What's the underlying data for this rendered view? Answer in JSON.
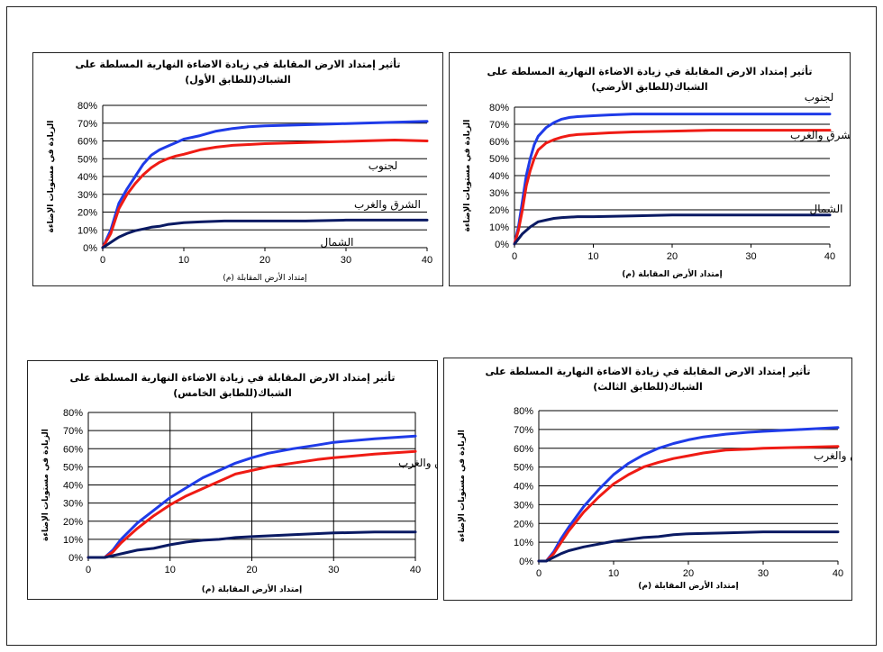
{
  "colors": {
    "south": "#1f3be8",
    "eastwest": "#ef1b14",
    "north": "#0a1a63",
    "grid": "#000000",
    "frame": "#222222"
  },
  "charts": [
    {
      "id": "first-floor",
      "title_line1": "تأثير إمتداد الارض المقابلة في زيادة الاضاءة النهارية المسلطة على",
      "title_line2": "الشباك(للطابق الأول)",
      "xlabel": "إمتداد الأرض المقابلة (م)",
      "ylabel": "الزيادة في مستويات الإضاءة",
      "series_labels": {
        "south": "لجنوب",
        "eastwest": "الشرق والغرب",
        "north": "الشمال"
      }
    },
    {
      "id": "ground-floor",
      "title_line1": "تأثير إمتداد الارض المقابلة في زيادة الاضاءة النهارية المسلطة على",
      "title_line2": "الشباك(للطابق الأرضي)",
      "xlabel": "إمتداد الأرض المقابلة (م)",
      "ylabel": "الزيادة في مستويات الإضاءة",
      "series_labels": {
        "south": "لجنوب",
        "eastwest": "الشرق والغرب",
        "north": "الشمال"
      }
    },
    {
      "id": "fifth-floor",
      "title_line1": "تأثير إمتداد الارض المقابلة في زيادة الاضاءة النهارية المسلطة على",
      "title_line2": "الشباك(للطابق الخامس)",
      "xlabel": "إمتداد الأرض المقابلة (م)",
      "ylabel": "الزيادة في مستويات الإضاءة",
      "series_labels": {
        "eastwest": "الشرق والغرب"
      }
    },
    {
      "id": "third-floor",
      "title_line1": "تأثير إمتداد الارض المقابلة في زيادة الاضاءة النهارية المسلطة على",
      "title_line2": "الشباك(للطابق الثالث)",
      "xlabel": "إمتداد الأرض المقابلة (م)",
      "ylabel": "الزيادة في مستويات الإضاءة",
      "series_labels": {
        "eastwest": "الشرق والغرب"
      }
    }
  ],
  "chart_data": [
    {
      "type": "line",
      "title": "تأثير إمتداد الارض المقابلة في زيادة الاضاءة النهارية المسلطة على الشباك(للطابق الأول)",
      "xlabel": "إمتداد الأرض المقابلة (م)",
      "ylabel": "الزيادة في مستويات الإضاءة",
      "xlim": [
        0,
        40
      ],
      "ylim": [
        0,
        0.8
      ],
      "xticks": [
        0,
        10,
        20,
        30,
        40
      ],
      "yticks": [
        "0%",
        "10%",
        "20%",
        "30%",
        "40%",
        "50%",
        "60%",
        "70%",
        "80%"
      ],
      "grid": "horizontal",
      "series": [
        {
          "key": "south",
          "name": "لجنوب",
          "color": "#1f3be8",
          "x": [
            0,
            1,
            2,
            3,
            4,
            5,
            6,
            7,
            8,
            9,
            10,
            12,
            14,
            16,
            18,
            20,
            24,
            28,
            32,
            36,
            40
          ],
          "y": [
            0,
            0.1,
            0.25,
            0.33,
            0.4,
            0.47,
            0.52,
            0.55,
            0.57,
            0.59,
            0.61,
            0.63,
            0.655,
            0.67,
            0.68,
            0.685,
            0.69,
            0.695,
            0.7,
            0.705,
            0.71
          ]
        },
        {
          "key": "eastwest",
          "name": "الشرق والغرب",
          "color": "#ef1b14",
          "x": [
            0,
            1,
            2,
            3,
            4,
            5,
            6,
            7,
            8,
            9,
            10,
            12,
            14,
            16,
            18,
            20,
            24,
            28,
            32,
            36,
            40
          ],
          "y": [
            0,
            0.08,
            0.22,
            0.3,
            0.36,
            0.41,
            0.45,
            0.48,
            0.5,
            0.515,
            0.525,
            0.55,
            0.565,
            0.575,
            0.58,
            0.585,
            0.59,
            0.595,
            0.6,
            0.605,
            0.6
          ]
        },
        {
          "key": "north",
          "name": "الشمال",
          "color": "#0a1a63",
          "x": [
            0,
            1,
            2,
            3,
            4,
            5,
            6,
            7,
            8,
            10,
            12,
            15,
            20,
            25,
            30,
            35,
            40
          ],
          "y": [
            0,
            0.03,
            0.06,
            0.08,
            0.095,
            0.105,
            0.115,
            0.12,
            0.13,
            0.14,
            0.145,
            0.15,
            0.15,
            0.15,
            0.155,
            0.155,
            0.155
          ]
        }
      ]
    },
    {
      "type": "line",
      "title": "تأثير إمتداد الارض المقابلة في زيادة الاضاءة النهارية المسلطة على الشباك(للطابق الأرضي)",
      "xlabel": "إمتداد الأرض المقابلة (م)",
      "ylabel": "الزيادة في مستويات الإضاءة",
      "xlim": [
        0,
        40
      ],
      "ylim": [
        0,
        0.8
      ],
      "xticks": [
        0,
        10,
        20,
        30,
        40
      ],
      "yticks": [
        "0%",
        "10%",
        "20%",
        "30%",
        "40%",
        "50%",
        "60%",
        "70%",
        "80%"
      ],
      "grid": "horizontal",
      "series": [
        {
          "key": "south",
          "name": "لجنوب",
          "color": "#1f3be8",
          "x": [
            0,
            0.5,
            1,
            1.5,
            2,
            2.5,
            3,
            4,
            5,
            6,
            7,
            8,
            10,
            12,
            15,
            20,
            25,
            30,
            35,
            40
          ],
          "y": [
            0,
            0.1,
            0.25,
            0.4,
            0.5,
            0.58,
            0.63,
            0.68,
            0.71,
            0.73,
            0.74,
            0.745,
            0.75,
            0.755,
            0.76,
            0.76,
            0.76,
            0.76,
            0.76,
            0.76
          ]
        },
        {
          "key": "eastwest",
          "name": "الشرق والغرب",
          "color": "#ef1b14",
          "x": [
            0,
            0.5,
            1,
            1.5,
            2,
            2.5,
            3,
            4,
            5,
            6,
            7,
            8,
            10,
            12,
            15,
            20,
            25,
            30,
            35,
            40
          ],
          "y": [
            0,
            0.08,
            0.2,
            0.34,
            0.43,
            0.5,
            0.55,
            0.59,
            0.61,
            0.625,
            0.635,
            0.64,
            0.645,
            0.65,
            0.655,
            0.66,
            0.665,
            0.665,
            0.665,
            0.665
          ]
        },
        {
          "key": "north",
          "name": "الشمال",
          "color": "#0a1a63",
          "x": [
            0,
            1,
            2,
            3,
            4,
            5,
            6,
            8,
            10,
            15,
            20,
            25,
            30,
            35,
            40
          ],
          "y": [
            0,
            0.06,
            0.1,
            0.13,
            0.14,
            0.15,
            0.155,
            0.16,
            0.16,
            0.165,
            0.17,
            0.17,
            0.17,
            0.17,
            0.17
          ]
        }
      ]
    },
    {
      "type": "line",
      "title": "تأثير إمتداد الارض المقابلة في زيادة الاضاءة النهارية المسلطة على الشباك(للطابق الخامس)",
      "xlabel": "إمتداد الأرض المقابلة (م)",
      "ylabel": "الزيادة في مستويات الإضاءة",
      "xlim": [
        0,
        40
      ],
      "ylim": [
        0,
        0.8
      ],
      "xticks": [
        0,
        10,
        20,
        30,
        40
      ],
      "yticks": [
        "0%",
        "10%",
        "20%",
        "30%",
        "40%",
        "50%",
        "60%",
        "70%",
        "80%"
      ],
      "grid": "both",
      "series": [
        {
          "key": "south",
          "color": "#1f3be8",
          "x": [
            0,
            2,
            3,
            4,
            6,
            8,
            10,
            12,
            14,
            16,
            18,
            20,
            22,
            25,
            28,
            30,
            35,
            40
          ],
          "y": [
            0,
            0,
            0.04,
            0.1,
            0.19,
            0.26,
            0.33,
            0.385,
            0.44,
            0.48,
            0.52,
            0.55,
            0.575,
            0.6,
            0.62,
            0.635,
            0.655,
            0.67
          ]
        },
        {
          "key": "eastwest",
          "name": "الشرق والغرب",
          "color": "#ef1b14",
          "x": [
            0,
            2,
            3,
            4,
            6,
            8,
            10,
            12,
            14,
            16,
            18,
            20,
            22,
            25,
            28,
            30,
            35,
            40
          ],
          "y": [
            0,
            0,
            0.03,
            0.08,
            0.16,
            0.23,
            0.29,
            0.34,
            0.38,
            0.42,
            0.46,
            0.48,
            0.5,
            0.52,
            0.54,
            0.55,
            0.57,
            0.585
          ]
        },
        {
          "key": "north",
          "color": "#0a1a63",
          "x": [
            0,
            2,
            3,
            4,
            6,
            8,
            10,
            12,
            14,
            16,
            18,
            20,
            25,
            30,
            35,
            40
          ],
          "y": [
            0,
            0,
            0.01,
            0.02,
            0.04,
            0.05,
            0.07,
            0.085,
            0.095,
            0.1,
            0.11,
            0.115,
            0.125,
            0.135,
            0.14,
            0.14
          ]
        }
      ]
    },
    {
      "type": "line",
      "title": "تأثير إمتداد الارض المقابلة في زيادة الاضاءة النهارية المسلطة على الشباك(للطابق الثالث)",
      "xlabel": "إمتداد الأرض المقابلة (م)",
      "ylabel": "الزيادة في مستويات الإضاءة",
      "xlim": [
        0,
        40
      ],
      "ylim": [
        0,
        0.8
      ],
      "xticks": [
        0,
        10,
        20,
        30,
        40
      ],
      "yticks": [
        "0%",
        "10%",
        "20%",
        "30%",
        "40%",
        "50%",
        "60%",
        "70%",
        "80%"
      ],
      "grid": "horizontal",
      "series": [
        {
          "key": "south",
          "color": "#1f3be8",
          "x": [
            0,
            1,
            2,
            3,
            4,
            6,
            8,
            10,
            12,
            14,
            16,
            18,
            20,
            22,
            25,
            28,
            30,
            35,
            40
          ],
          "y": [
            0,
            0,
            0.05,
            0.12,
            0.18,
            0.29,
            0.38,
            0.46,
            0.52,
            0.565,
            0.6,
            0.625,
            0.645,
            0.66,
            0.675,
            0.685,
            0.69,
            0.7,
            0.71
          ]
        },
        {
          "key": "eastwest",
          "name": "الشرق والغرب",
          "color": "#ef1b14",
          "x": [
            0,
            1,
            2,
            3,
            4,
            6,
            8,
            10,
            12,
            14,
            16,
            18,
            20,
            22,
            25,
            28,
            30,
            35,
            40
          ],
          "y": [
            0,
            0,
            0.04,
            0.1,
            0.16,
            0.26,
            0.34,
            0.41,
            0.46,
            0.5,
            0.525,
            0.545,
            0.56,
            0.575,
            0.59,
            0.595,
            0.6,
            0.605,
            0.61
          ]
        },
        {
          "key": "north",
          "color": "#0a1a63",
          "x": [
            0,
            1,
            2,
            3,
            4,
            6,
            8,
            10,
            12,
            14,
            16,
            18,
            20,
            25,
            30,
            35,
            40
          ],
          "y": [
            0,
            0,
            0.02,
            0.04,
            0.055,
            0.075,
            0.09,
            0.105,
            0.115,
            0.125,
            0.13,
            0.14,
            0.145,
            0.15,
            0.155,
            0.155,
            0.155
          ]
        }
      ]
    }
  ]
}
